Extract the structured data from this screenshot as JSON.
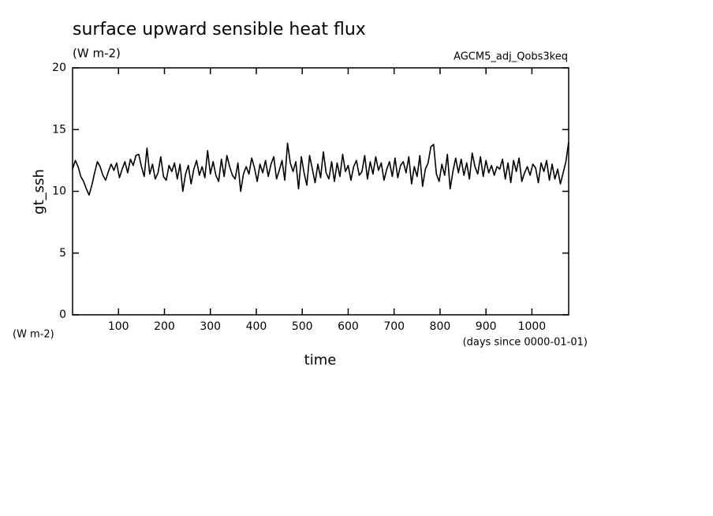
{
  "chart_data": {
    "type": "line",
    "title": "surface upward sensible heat flux",
    "subtitle": "(W m-2)",
    "annotation": "AGCM5_adj_Qobs3keq",
    "y_label": "gt_ssh",
    "y_unit": "(W m-2)",
    "x_label": "time",
    "x_unit": "(days since 0000-01-01)",
    "xlim": [
      0,
      1080
    ],
    "ylim": [
      0,
      20
    ],
    "xticks": [
      100,
      200,
      300,
      400,
      500,
      600,
      700,
      800,
      900,
      1000
    ],
    "yticks": [
      0,
      5,
      10,
      15,
      20
    ],
    "color": "#000000",
    "x": [
      0,
      6,
      12,
      18,
      24,
      30,
      36,
      42,
      48,
      54,
      60,
      66,
      72,
      78,
      84,
      90,
      96,
      102,
      108,
      114,
      120,
      126,
      132,
      138,
      144,
      150,
      156,
      162,
      168,
      174,
      180,
      186,
      192,
      198,
      204,
      210,
      216,
      222,
      228,
      234,
      240,
      246,
      252,
      258,
      264,
      270,
      276,
      282,
      288,
      294,
      300,
      306,
      312,
      318,
      324,
      330,
      336,
      342,
      348,
      354,
      360,
      366,
      372,
      378,
      384,
      390,
      396,
      402,
      408,
      414,
      420,
      426,
      432,
      438,
      444,
      450,
      456,
      462,
      468,
      474,
      480,
      486,
      492,
      498,
      504,
      510,
      516,
      522,
      528,
      534,
      540,
      546,
      552,
      558,
      564,
      570,
      576,
      582,
      588,
      594,
      600,
      606,
      612,
      618,
      624,
      630,
      636,
      642,
      648,
      654,
      660,
      666,
      672,
      678,
      684,
      690,
      696,
      702,
      708,
      714,
      720,
      726,
      732,
      738,
      744,
      750,
      756,
      762,
      768,
      774,
      780,
      786,
      792,
      798,
      804,
      810,
      816,
      822,
      828,
      834,
      840,
      846,
      852,
      858,
      864,
      870,
      876,
      882,
      888,
      894,
      900,
      906,
      912,
      918,
      924,
      930,
      936,
      942,
      948,
      954,
      960,
      966,
      972,
      978,
      984,
      990,
      996,
      1002,
      1008,
      1014,
      1020,
      1026,
      1032,
      1038,
      1044,
      1050,
      1056,
      1062,
      1068,
      1074,
      1080
    ],
    "values": [
      11.8,
      12.5,
      12.0,
      11.2,
      10.8,
      10.2,
      9.7,
      10.5,
      11.5,
      12.4,
      12.0,
      11.3,
      10.9,
      11.6,
      12.2,
      11.7,
      12.3,
      11.1,
      11.8,
      12.4,
      11.5,
      12.6,
      12.1,
      12.9,
      13.0,
      12.0,
      11.2,
      13.5,
      11.4,
      12.2,
      11.0,
      11.5,
      12.8,
      11.2,
      10.9,
      12.1,
      11.6,
      12.3,
      11.0,
      12.2,
      10.0,
      11.4,
      12.1,
      10.6,
      11.8,
      12.5,
      11.3,
      12.0,
      11.1,
      13.3,
      11.4,
      12.4,
      11.3,
      10.8,
      12.6,
      11.2,
      12.9,
      12.0,
      11.3,
      11.0,
      12.3,
      10.0,
      11.4,
      12.0,
      11.4,
      12.7,
      11.9,
      10.8,
      12.2,
      11.5,
      12.5,
      11.2,
      12.2,
      12.8,
      11.0,
      11.7,
      12.5,
      10.9,
      13.9,
      12.3,
      11.6,
      12.4,
      10.2,
      12.8,
      11.5,
      10.5,
      12.9,
      11.8,
      10.7,
      12.2,
      11.1,
      13.2,
      11.5,
      11.0,
      12.4,
      10.8,
      12.3,
      11.2,
      13.0,
      11.6,
      12.1,
      10.9,
      12.0,
      12.5,
      11.3,
      11.6,
      12.9,
      11.0,
      12.4,
      11.4,
      12.8,
      11.7,
      12.3,
      10.9,
      11.8,
      12.4,
      11.2,
      12.7,
      11.1,
      12.1,
      12.4,
      11.5,
      12.8,
      10.6,
      12.0,
      11.2,
      12.9,
      10.4,
      11.8,
      12.3,
      13.6,
      13.8,
      11.4,
      10.8,
      12.2,
      11.3,
      13.0,
      10.2,
      11.6,
      12.7,
      11.5,
      12.6,
      11.3,
      12.3,
      11.0,
      13.1,
      12.0,
      11.4,
      12.8,
      11.2,
      12.5,
      11.5,
      12.1,
      11.3,
      12.0,
      11.8,
      12.6,
      11.0,
      12.3,
      10.7,
      12.5,
      11.6,
      12.7,
      10.8,
      11.5,
      12.0,
      11.3,
      12.2,
      11.9,
      10.7,
      12.3,
      11.6,
      12.5,
      10.9,
      12.2,
      11.0,
      11.8,
      10.6,
      11.5,
      12.4,
      14.0
    ]
  }
}
